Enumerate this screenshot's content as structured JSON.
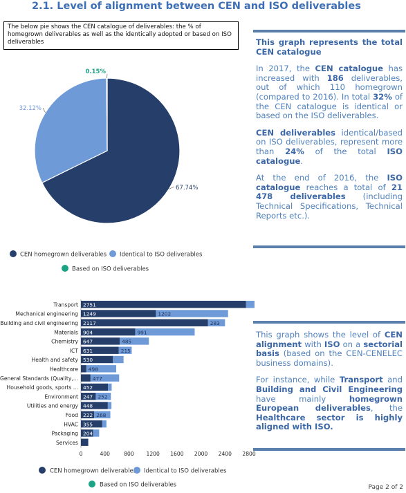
{
  "page": {
    "heading": "2.1. Level of alignment between CEN and ISO deliverables",
    "note": "The below pie shows the CEN catalogue of deliverables: the % of homegrown deliverables as well as the identically adopted or based on ISO deliverables",
    "footer": "Page 2 of 2"
  },
  "panel1": {
    "title": "This graph represents the total CEN catalogue",
    "p1": [
      {
        "t": "In 2017, the "
      },
      {
        "t": "CEN catalogue",
        "b": true
      },
      {
        "t": " has increased with "
      },
      {
        "t": "186",
        "b": true
      },
      {
        "t": " deliverables, out of which 110 homegrown (compared to 2016). In total "
      },
      {
        "t": "32%",
        "b": true
      },
      {
        "t": " of the CEN catalogue is identical or based on the ISO deliverables."
      }
    ],
    "p2": [
      {
        "t": "CEN deliverables",
        "b": true
      },
      {
        "t": " identical/based on ISO deliverables, represent more than "
      },
      {
        "t": "24%",
        "b": true
      },
      {
        "t": " of the total "
      },
      {
        "t": "ISO catalogue",
        "b": true
      },
      {
        "t": "."
      }
    ],
    "p3": [
      {
        "t": "At the end of 2016, the "
      },
      {
        "t": "ISO catalogue",
        "b": true
      },
      {
        "t": " reaches a total of "
      },
      {
        "t": "21 478 deliverables",
        "b": true
      },
      {
        "t": " (including Technical Specifications, Technical Reports etc.)."
      }
    ]
  },
  "panel2": {
    "p1": [
      {
        "t": "This graph shows the level of "
      },
      {
        "t": "CEN alignment",
        "b": true
      },
      {
        "t": " with "
      },
      {
        "t": "ISO",
        "b": true
      },
      {
        "t": " on a "
      },
      {
        "t": "sectorial basis",
        "b": true
      },
      {
        "t": " (based on the CEN-CENELEC business domains)."
      }
    ],
    "p2": [
      {
        "t": "For instance, while "
      },
      {
        "t": "Transport",
        "b": true
      },
      {
        "t": " and "
      },
      {
        "t": "Building and Civil Engineering",
        "b": true
      },
      {
        "t": " have mainly "
      },
      {
        "t": "homegrown European deliverables",
        "b": true
      },
      {
        "t": ", the "
      },
      {
        "t": "Healthcare sector is highly aligned with ISO.",
        "b": true
      }
    ]
  },
  "colors": {
    "homegrown": "#263f6a",
    "identical": "#6f9ad8",
    "based": "#1ba386",
    "heading": "#3d6fb6",
    "panel_text": "#4f81bd"
  },
  "chart_data": [
    {
      "type": "pie",
      "title": "",
      "series": [
        {
          "name": "CEN homegrown deliverables",
          "value": 67.74,
          "label": "67.74%"
        },
        {
          "name": "Identical to ISO deliverables",
          "value": 32.12,
          "label": "32.12%"
        },
        {
          "name": "Based on ISO deliverables",
          "value": 0.15,
          "label": "0.15%"
        }
      ],
      "legend": "bottom"
    },
    {
      "type": "bar",
      "orientation": "horizontal",
      "stacked": true,
      "title": "",
      "categories": [
        "Transport",
        "Mechanical engineering",
        "Building and civil engineering",
        "Materials",
        "Chemistry",
        "ICT",
        "Health and safety",
        "Healthcare",
        "General Standards (Quality,...",
        "Household goods, sports ...",
        "Environment",
        "Utilities and energy",
        "Food",
        "HVAC",
        "Packaging",
        "Services"
      ],
      "series": [
        {
          "name": "CEN homegrown deliverables",
          "values": [
            2751,
            1249,
            2117,
            904,
            647,
            631,
            530,
            90,
            160,
            452,
            247,
            448,
            222,
            355,
            204,
            120
          ]
        },
        {
          "name": "Identical to ISO deliverables",
          "values": [
            140,
            1202,
            283,
            991,
            485,
            215,
            180,
            498,
            477,
            60,
            252,
            60,
            268,
            70,
            100,
            5
          ]
        },
        {
          "name": "Based on ISO deliverables",
          "values": [
            0,
            0,
            0,
            0,
            0,
            0,
            0,
            0,
            0,
            0,
            0,
            0,
            0,
            0,
            0,
            0
          ]
        }
      ],
      "value_labels": {
        "homegrown": [
          "2751",
          "1249",
          "2117",
          "904",
          "647",
          "631",
          "530",
          "",
          "",
          "452",
          "247",
          "448",
          "222",
          "355",
          "204",
          ""
        ],
        "identical": [
          "",
          "1202",
          "283",
          "991",
          "485",
          "215",
          "",
          "498",
          "477",
          "",
          "252",
          "",
          "268",
          "",
          "",
          ""
        ]
      },
      "xticks": [
        0,
        400,
        800,
        1200,
        1600,
        2000,
        2400,
        2800
      ],
      "xlim": [
        0,
        2900
      ],
      "legend": "bottom"
    }
  ]
}
